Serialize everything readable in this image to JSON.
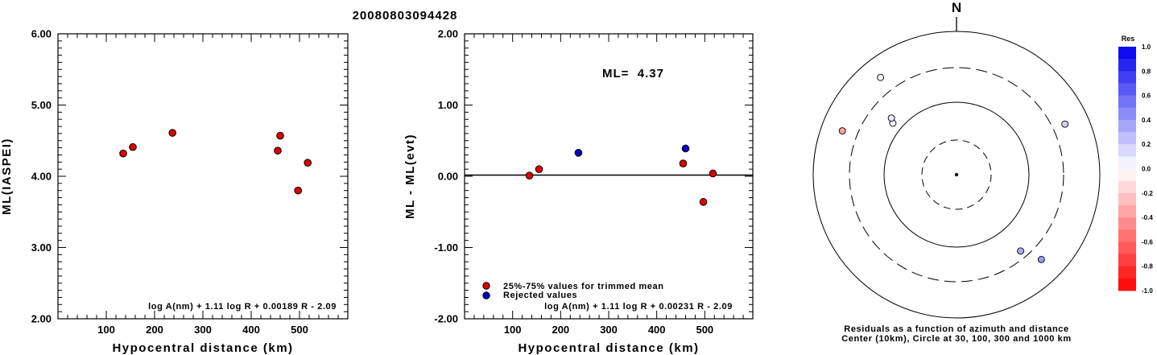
{
  "title": "20080803094428",
  "chart_data": [
    {
      "type": "scatter",
      "xlabel": "Hypocentral distance (km)",
      "ylabel": "ML(IASPEI)",
      "xlim": [
        0,
        600
      ],
      "ylim": [
        2.0,
        6.0
      ],
      "xticks": [
        "100",
        "200",
        "300",
        "400",
        "500"
      ],
      "yticks": [
        "2.00",
        "3.00",
        "4.00",
        "5.00",
        "6.00"
      ],
      "formula": "log A(nm) + 1.11 log R + 0.00189 R - 2.09",
      "series": [
        {
          "color": "#dd0000",
          "points": [
            [
              135,
              4.32
            ],
            [
              155,
              4.41
            ],
            [
              237,
              4.61
            ],
            [
              455,
              4.36
            ],
            [
              460,
              4.57
            ],
            [
              497,
              3.8
            ],
            [
              517,
              4.19
            ]
          ]
        }
      ]
    },
    {
      "type": "scatter",
      "xlabel": "Hypocentral distance (km)",
      "ylabel": "ML - ML(evt)",
      "xlim": [
        0,
        600
      ],
      "ylim": [
        -2.0,
        2.0
      ],
      "xticks": [
        "100",
        "200",
        "300",
        "400",
        "500"
      ],
      "yticks": [
        "-2.00",
        "-1.00",
        "0.00",
        "1.00",
        "2.00"
      ],
      "annotation": "ML=  4.37",
      "formula": "log A(nm) + 1.11 log R + 0.00231 R - 2.09",
      "zero_line": true,
      "legend": [
        {
          "label": "25%-75% values for trimmed mean",
          "color": "#dd0000"
        },
        {
          "label": "Rejected values",
          "color": "#0000cc"
        }
      ],
      "series": [
        {
          "name": "25%-75% values for trimmed mean",
          "color": "#dd0000",
          "points": [
            [
              135,
              0.01
            ],
            [
              155,
              0.1
            ],
            [
              455,
              0.18
            ],
            [
              497,
              -0.36
            ],
            [
              517,
              0.04
            ]
          ]
        },
        {
          "name": "Rejected values",
          "color": "#0000cc",
          "points": [
            [
              237,
              0.33
            ],
            [
              460,
              0.39
            ]
          ]
        }
      ]
    },
    {
      "type": "polar",
      "north_label": "N",
      "caption_line1": "Residuals as a function of azimuth and distance",
      "caption_line2": "Center (10km), Circle at 30, 100, 300 and 1000 km",
      "colorbar": {
        "title": "Res",
        "range": [
          -1.0,
          1.0
        ],
        "ticks": [
          "1.0",
          "0.8",
          "0.6",
          "0.4",
          "0.2",
          "0.0",
          "-0.2",
          "-0.4",
          "-0.6",
          "-0.8",
          "-1.0"
        ],
        "positive_color": "#0000ee",
        "negative_color": "#ff0000"
      },
      "stations": [
        {
          "azimuth_deg": 291,
          "residual": -0.36
        },
        {
          "azimuth_deg": 309,
          "residual": 0.01
        },
        {
          "azimuth_deg": 311,
          "residual": 0.1
        },
        {
          "azimuth_deg": 322,
          "residual": 0.04
        },
        {
          "azimuth_deg": 65,
          "residual": 0.18
        },
        {
          "azimuth_deg": 140,
          "residual": 0.33
        },
        {
          "azimuth_deg": 135,
          "residual": 0.39
        }
      ]
    }
  ]
}
